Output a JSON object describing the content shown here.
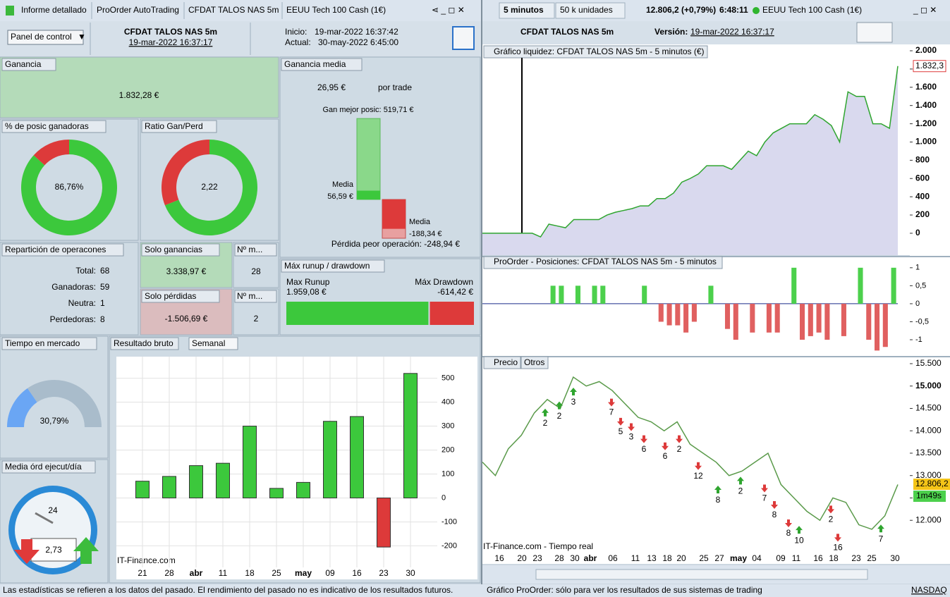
{
  "left_tabs": [
    "Informe detallado",
    "ProOrder AutoTrading",
    "CFDAT TALOS NAS 5m",
    "EEUU Tech 100 Cash (1€)"
  ],
  "toolbar": {
    "timeframe": "5 minutos",
    "units": "50 k unidades",
    "quote": "12.806,2 (+0,79%)",
    "time": "6:48:11",
    "instrument": "EEUU Tech 100 Cash (1€)"
  },
  "header": {
    "menu": "Panel de control",
    "system": "CFDAT TALOS NAS 5m",
    "system_date": "19-mar-2022 16:37:17",
    "start_label": "Inicio:",
    "start": "19-mar-2022 16:37:42",
    "current_label": "Actual:",
    "current": "30-may-2022 6:45:00",
    "right_system": "CFDAT TALOS NAS 5m",
    "version_label": "Versión:",
    "version": "19-mar-2022 16:37:17"
  },
  "gain": {
    "title": "Ganancia",
    "value": "1.832,28 €"
  },
  "win_pct": {
    "title": "% de posic ganadoras",
    "value": {
      "value": 86.76,
      "label": "86,76%"
    }
  },
  "ratio": {
    "title": "Ratio Gan/Perd",
    "value": {
      "value": 2.22,
      "label": "2,22"
    }
  },
  "avg_gain": {
    "title": "Ganancia media",
    "value": "26,95 €",
    "suffix": "por trade",
    "best_label": "Gan mejor posic:",
    "best": {
      "value": 519.71,
      "label": "519,71 €"
    },
    "win_label": "Media",
    "win_avg": {
      "value": 56.59,
      "label": "56,59 €"
    },
    "loss_label": "Media",
    "loss_avg": {
      "value": -188.34,
      "label": "-188,34 €"
    },
    "worst_label": "Pérdida peor operación:",
    "worst": {
      "value": -248.94,
      "label": "-248,94 €"
    }
  },
  "distribution": {
    "title": "Repartición de operacones",
    "rows": [
      {
        "label": "Total:",
        "value": 68,
        "color": "#000000"
      },
      {
        "label": "Ganadoras:",
        "value": 59,
        "color": "#1e9b2a"
      },
      {
        "label": "Neutra:",
        "value": 1,
        "color": "#000000"
      },
      {
        "label": "Perdedoras:",
        "value": 8,
        "color": "#b01c1c"
      }
    ]
  },
  "only_gains": {
    "title": "Solo ganancias",
    "value": "3.338,97 €",
    "count_title": "Nº m...",
    "count": 28
  },
  "only_losses": {
    "title": "Solo pérdidas",
    "value": "-1.506,69 €",
    "count_title": "Nº m...",
    "count": 2
  },
  "runup": {
    "title": "Máx runup / drawdown",
    "runup_label": "Max Runup",
    "runup": {
      "value": 1959.08,
      "label": "1.959,08 €"
    },
    "drawdown_label": "Máx Drawdown",
    "drawdown": {
      "value": -614.42,
      "label": "-614,42 €"
    }
  },
  "market_time": {
    "title": "Tiempo en mercado",
    "value": {
      "value": 30.79,
      "label": "30,79%"
    }
  },
  "orders": {
    "title": "Media órd ejecut/día",
    "dial": 24,
    "value": {
      "value": 2.73,
      "label": "2,73"
    }
  },
  "weekly": {
    "type": "bar",
    "title": "Resultado bruto",
    "mode": "Semanal",
    "source": "IT-Finance.com",
    "categories": [
      "21",
      "28",
      "abr",
      "11",
      "18",
      "25",
      "may",
      "09",
      "16",
      "23",
      "30"
    ],
    "values": [
      70,
      90,
      135,
      145,
      300,
      40,
      65,
      320,
      340,
      -205,
      520
    ],
    "colors": {
      "positive": "#3cc83c",
      "negative": "#dd3a3a"
    },
    "ylim": [
      -290,
      590
    ],
    "yticks": [
      500,
      400,
      300,
      200,
      100,
      0,
      -100,
      -200
    ],
    "grid": true
  },
  "equity": {
    "type": "area",
    "title": "Gráfico liquidez: CFDAT TALOS NAS 5m - 5 minutos (€)",
    "values": [
      0,
      0,
      0,
      0,
      0,
      0,
      0,
      -40,
      100,
      80,
      60,
      150,
      150,
      150,
      150,
      200,
      230,
      250,
      270,
      300,
      300,
      380,
      380,
      440,
      560,
      600,
      650,
      740,
      740,
      740,
      700,
      800,
      900,
      850,
      1000,
      1100,
      1150,
      1200,
      1200,
      1200,
      1300,
      1250,
      1180,
      1000,
      1550,
      1500,
      1500,
      1200,
      1200,
      1150,
      1832.3
    ],
    "color": "#2fa52f",
    "fill": "#d9d9ee",
    "ylim": [
      -240,
      2062
    ],
    "yticks": [
      {
        "value": 2000,
        "label": "2.000"
      },
      {
        "value": 1800,
        "label": "1.800"
      },
      {
        "value": 1600,
        "label": "1.600"
      },
      {
        "value": 1400,
        "label": "1.400"
      },
      {
        "value": 1200,
        "label": "1.200"
      },
      {
        "value": 1000,
        "label": "1.000"
      },
      800,
      600,
      400,
      200,
      0
    ],
    "last": {
      "value": 1832.3,
      "label": "1.832,3"
    }
  },
  "positions": {
    "type": "bar",
    "title": "ProOrder - Posiciones: CFDAT TALOS NAS 5m - 5 minutos",
    "values": [
      0,
      0,
      0,
      0,
      0,
      0,
      0,
      0,
      0.5,
      0.5,
      0,
      0.5,
      0,
      0.5,
      0.5,
      0,
      0,
      0,
      0,
      0.5,
      0,
      -0.5,
      -0.6,
      -0.6,
      -0.8,
      -0.5,
      0,
      0.5,
      0,
      -0.7,
      -1,
      0,
      -0.8,
      0,
      -0.8,
      -0.8,
      0,
      1,
      -1,
      -0.9,
      -0.8,
      -1,
      0,
      -0.9,
      0,
      1,
      -1,
      -1.3,
      -1.2,
      1
    ],
    "colors": {
      "positive": "#4cd04c",
      "negative": "#e06060"
    },
    "ylim": [
      -1.45,
      1.31
    ],
    "yticks": [
      1,
      {
        "value": 0.5,
        "label": "0,5"
      },
      0,
      {
        "value": -0.5,
        "label": "-0,5"
      },
      -1
    ]
  },
  "price": {
    "type": "line",
    "tabs": [
      "Precio",
      "Otros"
    ],
    "source": "IT-Finance.com - Tiempo real",
    "values": [
      13300,
      13000,
      13600,
      13900,
      14400,
      14700,
      14500,
      15200,
      15000,
      15100,
      14900,
      14600,
      14300,
      14200,
      14000,
      14200,
      13700,
      13500,
      13300,
      13000,
      13100,
      13300,
      13500,
      12800,
      12500,
      12200,
      12000,
      12500,
      12400,
      11900,
      11800,
      12100,
      12800
    ],
    "color": "#5a9a4a",
    "x_labels": [
      "16",
      "20",
      "23",
      "28",
      "30",
      "abr",
      "06",
      "11",
      "13",
      "18",
      "20",
      "25",
      "27",
      "may",
      "04",
      "09",
      "11",
      "16",
      "18",
      "23",
      "25",
      "30"
    ],
    "ylim": [
      11027,
      15641
    ],
    "yticks": [
      {
        "value": 15500,
        "label": "15.500"
      },
      {
        "value": 15000,
        "label": "15.000"
      },
      {
        "value": 14500,
        "label": "14.500"
      },
      {
        "value": 14000,
        "label": "14.000"
      },
      {
        "value": 13500,
        "label": "13.500"
      },
      {
        "value": 13000,
        "label": "13.000"
      },
      {
        "value": 12500,
        "label": "12.500"
      },
      {
        "value": 12000,
        "label": "12.000"
      }
    ],
    "last": {
      "value": 12806.2,
      "label": "12.806,2"
    },
    "timer": "1m49s",
    "markers": [
      {
        "side": "buy",
        "price": 14400,
        "count": 2
      },
      {
        "side": "buy",
        "price": 14560,
        "count": 2
      },
      {
        "side": "buy",
        "price": 14870,
        "count": 3
      },
      {
        "side": "sell",
        "price": 14640,
        "count": 7
      },
      {
        "side": "sell",
        "price": 14210,
        "count": 5
      },
      {
        "side": "sell",
        "price": 14090,
        "count": 3
      },
      {
        "side": "sell",
        "price": 13820,
        "count": 6
      },
      {
        "side": "sell",
        "price": 13660,
        "count": 6
      },
      {
        "side": "sell",
        "price": 13820,
        "count": 2
      },
      {
        "side": "sell",
        "price": 13220,
        "count": 12
      },
      {
        "side": "buy",
        "price": 12680,
        "count": 8
      },
      {
        "side": "buy",
        "price": 12880,
        "count": 2
      },
      {
        "side": "sell",
        "price": 12720,
        "count": 7
      },
      {
        "side": "sell",
        "price": 12350,
        "count": 8
      },
      {
        "side": "sell",
        "price": 11940,
        "count": 8
      },
      {
        "side": "buy",
        "price": 11780,
        "count": 10
      },
      {
        "side": "sell",
        "price": 12250,
        "count": 2
      },
      {
        "side": "sell",
        "price": 11620,
        "count": 16
      },
      {
        "side": "buy",
        "price": 11810,
        "count": 7
      }
    ]
  },
  "footer": {
    "left": "Las estadísticas se refieren a los datos del pasado. El rendimiento del pasado no es indicativo de los resultados futuros.",
    "right": "Gráfico ProOrder: sólo para ver los resultados de sus sistemas de trading",
    "exchange": "NASDAQ"
  }
}
